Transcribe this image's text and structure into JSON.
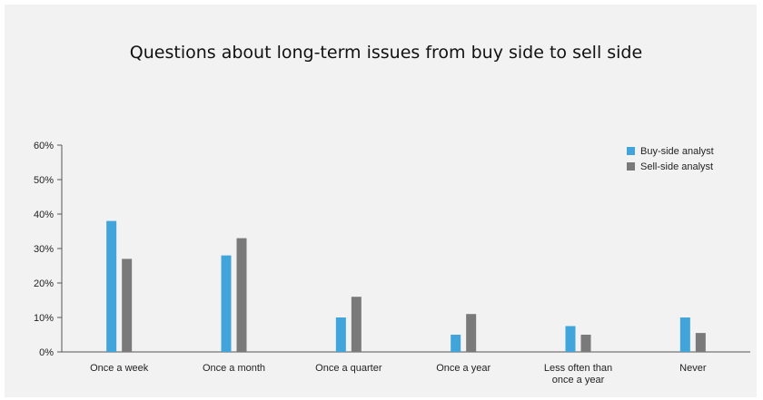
{
  "chart_data": {
    "type": "bar",
    "title": "Questions about long-term issues from buy side to sell side",
    "xlabel": "",
    "ylabel": "",
    "ylim": [
      0,
      60
    ],
    "yticks": [
      "0%",
      "10%",
      "20%",
      "30%",
      "40%",
      "50%",
      "60%"
    ],
    "categories": [
      "Once a week",
      "Once a month",
      "Once a quarter",
      "Once a year",
      "Less often than once a year",
      "Never"
    ],
    "category_lines": [
      [
        "Once a week"
      ],
      [
        "Once a month"
      ],
      [
        "Once a quarter"
      ],
      [
        "Once a year"
      ],
      [
        "Less often than",
        "once a year"
      ],
      [
        "Never"
      ]
    ],
    "series": [
      {
        "name": "Buy-side analyst",
        "color": "#41a5dc",
        "values": [
          38,
          28,
          10,
          5,
          7.5,
          10
        ]
      },
      {
        "name": "Sell-side analyst",
        "color": "#7a7a7a",
        "values": [
          27,
          33,
          16,
          11,
          5,
          5.5
        ]
      }
    ],
    "legend_position": "top-right",
    "grid": false
  }
}
